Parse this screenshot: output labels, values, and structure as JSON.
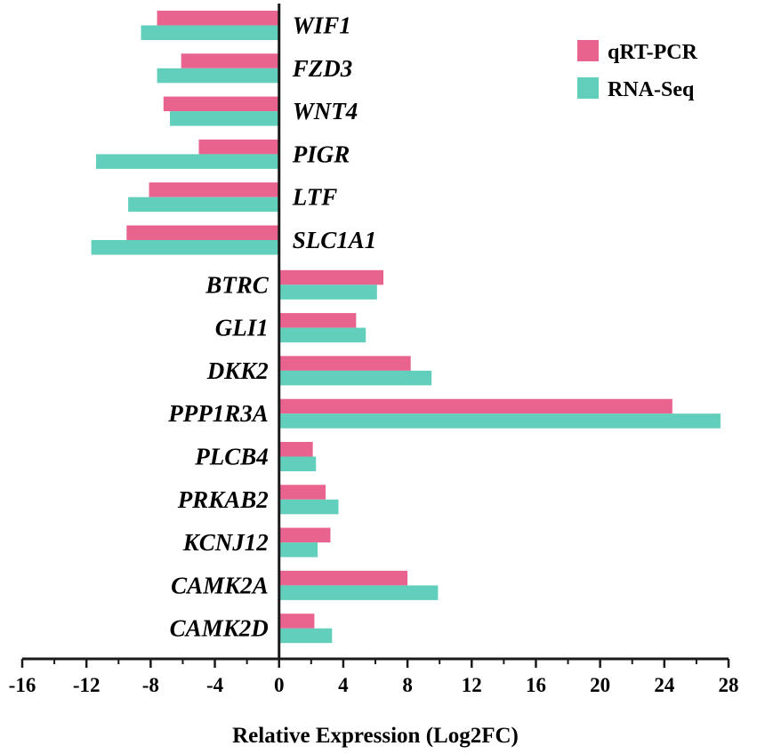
{
  "chart_data": {
    "type": "bar",
    "orientation": "horizontal",
    "xlabel": "Relative Expression (Log2FC)",
    "xlim": [
      -16,
      28
    ],
    "xticks": [
      -16,
      -12,
      -8,
      -4,
      0,
      4,
      8,
      12,
      16,
      20,
      24,
      28
    ],
    "legend_position": "top-right",
    "categories": [
      "WIF1",
      "FZD3",
      "WNT4",
      "PIGR",
      "LTF",
      "SLC1A1",
      "BTRC",
      "GLI1",
      "DKK2",
      "PPP1R3A",
      "PLCB4",
      "PRKAB2",
      "KCNJ12",
      "CAMK2A",
      "CAMK2D"
    ],
    "series": [
      {
        "name": "qRT-PCR",
        "color": "#e8648f",
        "values": [
          -7.6,
          -6.1,
          -7.2,
          -5.0,
          -8.1,
          -9.5,
          6.5,
          4.8,
          8.2,
          24.5,
          2.1,
          2.9,
          3.2,
          8.0,
          2.2
        ]
      },
      {
        "name": "RNA-Seq",
        "color": "#62cfbc",
        "values": [
          -8.6,
          -7.6,
          -6.8,
          -11.4,
          -9.4,
          -11.7,
          6.1,
          5.4,
          9.5,
          27.5,
          2.3,
          3.7,
          2.4,
          9.9,
          3.3
        ]
      }
    ]
  }
}
